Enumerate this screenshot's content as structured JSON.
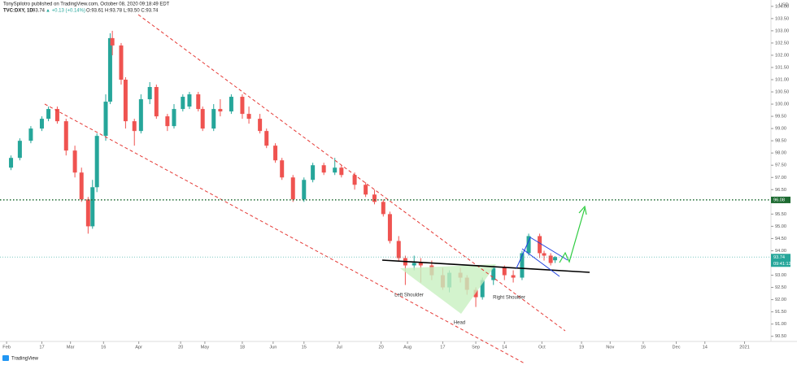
{
  "header": {
    "author_line": "TonySpilotro published on TradingView.com, October 08, 2020 09:18:49 EDT",
    "symbol": "TVC:DXY, 1D",
    "price": "93.74",
    "change": "▲ +0.13 (+0.14%)",
    "ohlc": "O:93.61 H:93.78 L:93.50 C:93.74"
  },
  "chart_data": {
    "type": "candlestick",
    "currency": "USD",
    "up_color": "#26a69a",
    "down_color": "#ef5350",
    "x": [
      "2020-02-03",
      "2020-02-07",
      "2020-02-12",
      "2020-02-17",
      "2020-02-20",
      "2020-02-24",
      "2020-02-28",
      "2020-03-03",
      "2020-03-06",
      "2020-03-09",
      "2020-03-11",
      "2020-03-13",
      "2020-03-17",
      "2020-03-19",
      "2020-03-20",
      "2020-03-24",
      "2020-03-26",
      "2020-03-30",
      "2020-04-02",
      "2020-04-06",
      "2020-04-09",
      "2020-04-14",
      "2020-04-17",
      "2020-04-21",
      "2020-04-24",
      "2020-04-28",
      "2020-04-30",
      "2020-05-05",
      "2020-05-08",
      "2020-05-13",
      "2020-05-18",
      "2020-05-21",
      "2020-05-26",
      "2020-05-29",
      "2020-06-02",
      "2020-06-05",
      "2020-06-10",
      "2020-06-15",
      "2020-06-19",
      "2020-06-24",
      "2020-06-29",
      "2020-07-02",
      "2020-07-08",
      "2020-07-13",
      "2020-07-17",
      "2020-07-21",
      "2020-07-24",
      "2020-07-28",
      "2020-07-31",
      "2020-08-04",
      "2020-08-07",
      "2020-08-12",
      "2020-08-17",
      "2020-08-20",
      "2020-08-25",
      "2020-08-28",
      "2020-09-01",
      "2020-09-04",
      "2020-09-09",
      "2020-09-14",
      "2020-09-18",
      "2020-09-22",
      "2020-09-25",
      "2020-09-30",
      "2020-10-02",
      "2020-10-05",
      "2020-10-07"
    ],
    "open": [
      97.4,
      97.8,
      98.5,
      99.0,
      99.4,
      99.8,
      99.3,
      98.1,
      97.2,
      96.1,
      95.0,
      96.6,
      98.7,
      100.1,
      102.7,
      102.4,
      101.0,
      99.3,
      98.9,
      100.2,
      100.7,
      99.5,
      99.1,
      99.8,
      99.9,
      100.4,
      99.8,
      99.0,
      99.8,
      99.7,
      100.3,
      99.6,
      99.4,
      98.9,
      98.3,
      97.7,
      97.0,
      96.1,
      96.9,
      97.5,
      97.2,
      97.4,
      97.1,
      96.7,
      96.3,
      96.0,
      95.5,
      94.4,
      93.7,
      93.4,
      93.5,
      93.4,
      93.0,
      92.5,
      93.1,
      92.9,
      92.4,
      92.1,
      92.8,
      93.3,
      93.0,
      92.9,
      93.9,
      94.6,
      93.9,
      93.8,
      93.61
    ],
    "high": [
      97.9,
      98.6,
      99.1,
      99.5,
      99.9,
      99.9,
      99.4,
      98.3,
      97.4,
      96.2,
      96.9,
      98.8,
      100.4,
      102.9,
      103.0,
      102.5,
      101.1,
      99.4,
      100.4,
      100.9,
      100.8,
      99.6,
      100.0,
      100.4,
      100.5,
      100.5,
      99.9,
      100.0,
      100.2,
      100.4,
      100.4,
      99.9,
      99.6,
      99.0,
      98.4,
      97.8,
      97.1,
      97.0,
      97.6,
      97.6,
      97.8,
      97.5,
      97.2,
      96.8,
      96.5,
      96.1,
      95.6,
      94.6,
      93.8,
      93.8,
      93.7,
      93.6,
      93.3,
      93.2,
      93.3,
      93.0,
      92.5,
      92.9,
      93.4,
      93.4,
      93.2,
      94.0,
      94.7,
      94.7,
      94.0,
      93.9,
      93.78
    ],
    "low": [
      97.3,
      97.7,
      98.4,
      98.9,
      99.3,
      99.2,
      97.9,
      97.0,
      96.0,
      94.7,
      94.9,
      96.4,
      98.5,
      100.0,
      102.0,
      100.8,
      99.0,
      98.3,
      98.8,
      100.0,
      99.4,
      98.9,
      99.0,
      99.7,
      99.8,
      99.7,
      98.9,
      98.9,
      99.5,
      99.6,
      99.4,
      99.2,
      98.8,
      98.2,
      97.6,
      96.9,
      96.0,
      96.0,
      96.8,
      97.1,
      97.1,
      97.0,
      96.5,
      96.2,
      95.9,
      95.4,
      94.3,
      93.6,
      92.6,
      93.2,
      92.7,
      92.8,
      92.4,
      92.3,
      92.7,
      92.2,
      91.7,
      92.0,
      92.6,
      92.8,
      92.7,
      92.8,
      93.8,
      93.7,
      93.6,
      93.4,
      93.5
    ],
    "close": [
      97.8,
      98.5,
      99.0,
      99.4,
      99.8,
      99.3,
      98.1,
      97.2,
      96.1,
      95.0,
      96.6,
      98.7,
      100.1,
      102.7,
      102.4,
      101.0,
      99.3,
      98.9,
      100.2,
      100.7,
      99.5,
      99.1,
      99.8,
      100.3,
      100.4,
      99.8,
      99.0,
      99.8,
      99.7,
      100.3,
      99.6,
      99.4,
      98.9,
      98.3,
      97.7,
      97.0,
      96.1,
      96.9,
      97.5,
      97.2,
      97.4,
      97.1,
      96.7,
      96.3,
      96.0,
      95.5,
      94.4,
      93.7,
      93.4,
      93.5,
      93.4,
      93.0,
      92.5,
      93.1,
      92.9,
      92.4,
      92.1,
      92.8,
      93.3,
      93.0,
      92.9,
      93.9,
      94.6,
      93.9,
      93.8,
      93.5,
      93.74
    ],
    "xlim": [
      "2020-01-29",
      "2021-01-13"
    ],
    "xticks": [
      {
        "value": "2020-02-01",
        "label": "Feb"
      },
      {
        "value": "2020-02-17",
        "label": "17"
      },
      {
        "value": "2020-03-01",
        "label": "Mar"
      },
      {
        "value": "2020-03-16",
        "label": "16"
      },
      {
        "value": "2020-04-01",
        "label": "Apr"
      },
      {
        "value": "2020-04-20",
        "label": "20"
      },
      {
        "value": "2020-05-01",
        "label": "May"
      },
      {
        "value": "2020-05-18",
        "label": "18"
      },
      {
        "value": "2020-06-01",
        "label": "Jun"
      },
      {
        "value": "2020-06-15",
        "label": "15"
      },
      {
        "value": "2020-07-01",
        "label": "Jul"
      },
      {
        "value": "2020-07-20",
        "label": "20"
      },
      {
        "value": "2020-08-01",
        "label": "Aug"
      },
      {
        "value": "2020-08-17",
        "label": "17"
      },
      {
        "value": "2020-09-01",
        "label": "Sep"
      },
      {
        "value": "2020-09-14",
        "label": "14"
      },
      {
        "value": "2020-10-01",
        "label": "Oct"
      },
      {
        "value": "2020-10-19",
        "label": "19"
      },
      {
        "value": "2020-11-01",
        "label": "Nov"
      },
      {
        "value": "2020-11-16",
        "label": "16"
      },
      {
        "value": "2020-12-01",
        "label": "Dec"
      },
      {
        "value": "2020-12-14",
        "label": "14"
      },
      {
        "value": "2021-01-01",
        "label": "2021"
      }
    ],
    "ylim": [
      90.29,
      104.26
    ],
    "yticks": [
      {
        "value": 90.5,
        "label": "90.50"
      },
      {
        "value": 91,
        "label": "91.00"
      },
      {
        "value": 91.5,
        "label": "91.50"
      },
      {
        "value": 92,
        "label": "92.00"
      },
      {
        "value": 92.5,
        "label": "92.50"
      },
      {
        "value": 93,
        "label": "93.00"
      },
      {
        "value": 93.5,
        "label": "93.50"
      },
      {
        "value": 94,
        "label": "94.00"
      },
      {
        "value": 94.5,
        "label": "94.50"
      },
      {
        "value": 95,
        "label": "95.00"
      },
      {
        "value": 95.5,
        "label": "95.50"
      },
      {
        "value": 96,
        "label": "96.00"
      },
      {
        "value": 96.5,
        "label": "96.50"
      },
      {
        "value": 97,
        "label": "97.00"
      },
      {
        "value": 97.5,
        "label": "97.50"
      },
      {
        "value": 98,
        "label": "98.00"
      },
      {
        "value": 98.5,
        "label": "98.50"
      },
      {
        "value": 99,
        "label": "99.00"
      },
      {
        "value": 99.5,
        "label": "99.50"
      },
      {
        "value": 100,
        "label": "100.00"
      },
      {
        "value": 100.5,
        "label": "100.50"
      },
      {
        "value": 101,
        "label": "101.00"
      },
      {
        "value": 101.5,
        "label": "101.50"
      },
      {
        "value": 102,
        "label": "102.00"
      },
      {
        "value": 102.5,
        "label": "102.50"
      },
      {
        "value": 103,
        "label": "103.00"
      },
      {
        "value": 103.5,
        "label": "103.50"
      },
      {
        "value": 104,
        "label": "104.00"
      }
    ],
    "level": 96.08,
    "level_color": "#1e6b32",
    "last_price": 93.74,
    "countdown": "09:41:12",
    "annotations": [
      "Left Shoulder",
      "Head",
      "Right Shoulder"
    ]
  },
  "footer": {
    "brand": "TradingView"
  }
}
